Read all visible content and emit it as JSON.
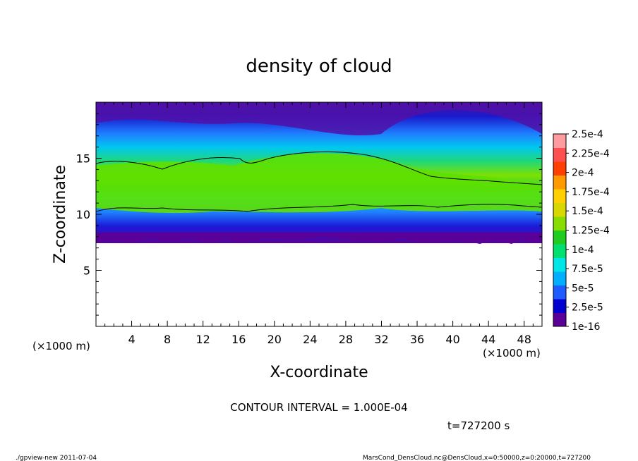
{
  "chart_data": {
    "type": "heatmap",
    "title": "density of cloud",
    "xlabel": "X-coordinate",
    "ylabel": "Z-coordinate",
    "x_unit_label_left": "(×1000 m)",
    "x_unit_label_right": "(×1000 m)",
    "xlim": [
      0,
      50
    ],
    "ylim": [
      0,
      20
    ],
    "x_ticks": [
      "4",
      "8",
      "12",
      "16",
      "20",
      "24",
      "28",
      "32",
      "36",
      "40",
      "44",
      "48"
    ],
    "y_ticks": [
      "5",
      "10",
      "15"
    ],
    "colorbar": {
      "labels": [
        "2.5e-4",
        "2.25e-4",
        "2e-4",
        "1.75e-4",
        "1.5e-4",
        "1.25e-4",
        "1e-4",
        "7.5e-5",
        "5e-5",
        "2.5e-5",
        "1e-16"
      ],
      "colors_bottom_to_top": [
        "#5a0099",
        "#0000d0",
        "#1f5cff",
        "#00b0ff",
        "#00e6e6",
        "#00e070",
        "#20cc20",
        "#88dd00",
        "#d8d800",
        "#ffd000",
        "#ff9900",
        "#ff4000",
        "#ff5050",
        "#ff9aa0"
      ]
    },
    "cloud_layer": {
      "base_z": 7.5,
      "top_z": 20,
      "core_z_range": [
        10,
        15.5
      ],
      "contour_level": 0.0001
    },
    "contour_interval_text": "CONTOUR INTERVAL = 1.000E-04",
    "time_text": "t=727200 s"
  },
  "footer": {
    "left": "./gpview-new  2011-07-04",
    "right": "MarsCond_DensCloud.nc@DensCloud,x=0:50000,z=0:20000,t=727200"
  }
}
